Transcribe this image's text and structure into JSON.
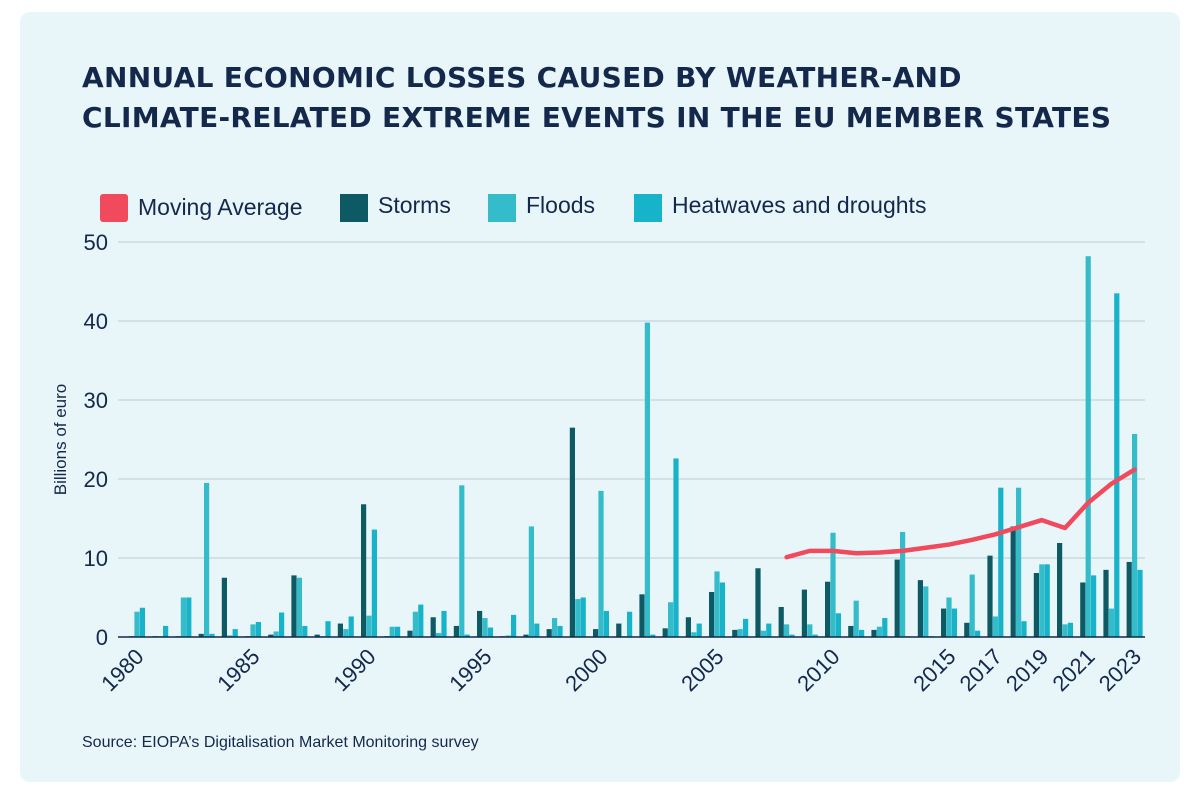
{
  "chart_data": {
    "type": "bar",
    "title_lines": [
      "ANNUAL ECONOMIC LOSSES CAUSED BY WEATHER-AND",
      "CLIMATE-RELATED EXTREME EVENTS IN THE EU MEMBER STATES"
    ],
    "ylabel": "Billions of euro",
    "ylim": [
      0,
      50
    ],
    "yticks": [
      0,
      10,
      20,
      30,
      40,
      50
    ],
    "years": [
      1980,
      1981,
      1982,
      1983,
      1984,
      1985,
      1986,
      1987,
      1988,
      1989,
      1990,
      1991,
      1992,
      1993,
      1994,
      1995,
      1996,
      1997,
      1998,
      1999,
      2000,
      2001,
      2002,
      2003,
      2004,
      2005,
      2006,
      2007,
      2008,
      2009,
      2010,
      2011,
      2012,
      2013,
      2014,
      2015,
      2016,
      2017,
      2018,
      2019,
      2020,
      2021,
      2022,
      2023
    ],
    "xtick_labels": [
      "1980",
      "1985",
      "1990",
      "1995",
      "2000",
      "2005",
      "2010",
      "2015",
      "2017",
      "2019",
      "2021",
      "2023"
    ],
    "series": [
      {
        "name": "Storms",
        "color": "#0d5a64",
        "values": [
          0.1,
          0.1,
          0.1,
          0.4,
          7.5,
          0.1,
          0.3,
          7.8,
          0.3,
          1.7,
          16.8,
          0.1,
          0.8,
          2.5,
          1.4,
          3.3,
          0.1,
          0.3,
          1.0,
          26.5,
          1.0,
          1.7,
          5.4,
          1.1,
          2.5,
          5.7,
          0.9,
          8.7,
          3.8,
          6.0,
          7.0,
          1.4,
          0.9,
          9.8,
          7.2,
          3.6,
          1.8,
          10.3,
          14.0,
          8.1,
          11.9,
          6.9,
          8.5,
          9.5
        ]
      },
      {
        "name": "Floods",
        "color": "#35bccb",
        "values": [
          3.2,
          0.1,
          5.0,
          19.5,
          0.2,
          1.6,
          0.7,
          7.5,
          0.1,
          1.0,
          2.7,
          1.3,
          3.2,
          0.5,
          19.2,
          2.4,
          0.2,
          14.0,
          2.4,
          4.8,
          18.5,
          0.1,
          39.8,
          4.4,
          0.6,
          8.3,
          1.0,
          0.8,
          1.6,
          1.6,
          13.2,
          4.6,
          1.3,
          13.3,
          6.4,
          5.0,
          7.9,
          2.6,
          18.9,
          9.2,
          1.6,
          48.2,
          3.6,
          25.7
        ]
      },
      {
        "name": "Heatwaves and droughts",
        "color": "#17b3c9",
        "values": [
          3.7,
          1.4,
          5.0,
          0.4,
          1.0,
          1.9,
          3.1,
          1.4,
          2.0,
          2.6,
          13.6,
          1.3,
          4.1,
          3.3,
          0.3,
          1.2,
          2.8,
          1.7,
          1.4,
          5.0,
          3.3,
          3.2,
          0.3,
          22.6,
          1.7,
          6.9,
          2.3,
          1.7,
          0.3,
          0.3,
          3.0,
          0.9,
          2.4,
          0.1,
          0.1,
          3.6,
          0.8,
          18.9,
          2.0,
          9.2,
          1.8,
          7.8,
          43.5,
          8.5
        ]
      }
    ],
    "moving_average": {
      "name": "Moving Average",
      "color": "#f04a5c",
      "years": [
        2008,
        2009,
        2010,
        2011,
        2012,
        2013,
        2014,
        2015,
        2016,
        2017,
        2018,
        2019,
        2020,
        2021,
        2022,
        2023
      ],
      "values": [
        10.1,
        10.9,
        10.9,
        10.6,
        10.7,
        10.9,
        11.3,
        11.7,
        12.3,
        13.0,
        13.9,
        14.8,
        13.8,
        17.0,
        19.4,
        21.2
      ]
    },
    "legend": [
      {
        "label": "Moving Average",
        "color": "#f04a5c"
      },
      {
        "label": "Storms",
        "color": "#0d5a64"
      },
      {
        "label": "Floods",
        "color": "#35bccb"
      },
      {
        "label": "Heatwaves and droughts",
        "color": "#17b3c9"
      }
    ],
    "source": "Source: EIOPA’s Digitalisation Market Monitoring survey"
  }
}
